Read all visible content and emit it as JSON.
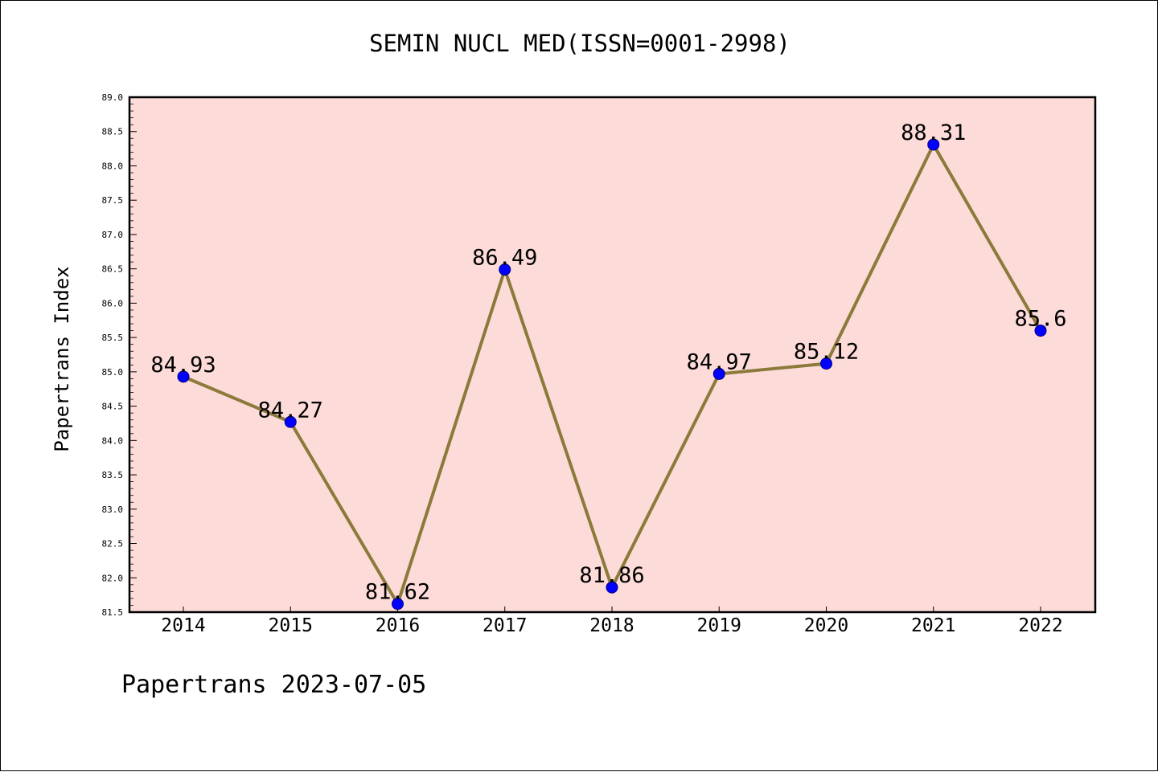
{
  "chart_data": {
    "type": "line",
    "title": "SEMIN NUCL MED(ISSN=0001-2998)",
    "xlabel": "",
    "ylabel": "Papertrans Index",
    "categories": [
      "2014",
      "2015",
      "2016",
      "2017",
      "2018",
      "2019",
      "2020",
      "2021",
      "2022"
    ],
    "values": [
      84.93,
      84.27,
      81.62,
      86.49,
      81.86,
      84.97,
      85.12,
      88.31,
      85.6
    ],
    "data_labels": [
      "84.93",
      "84.27",
      "81.62",
      "86.49",
      "81.86",
      "84.97",
      "85.12",
      "88.31",
      "85.6"
    ],
    "ylim": [
      81.5,
      89.0
    ],
    "yticks": [
      "81.5",
      "82.0",
      "82.5",
      "83.0",
      "83.5",
      "84.0",
      "84.5",
      "85.0",
      "85.5",
      "86.0",
      "86.5",
      "87.0",
      "87.5",
      "88.0",
      "88.5",
      "89.0"
    ],
    "grid": false,
    "legend": "none",
    "colors": {
      "plot_background": "#fddbd8",
      "line": "#8b7a3a",
      "marker": "#0000ff",
      "axis": "#000000"
    }
  },
  "footer": "Papertrans 2023-07-05"
}
